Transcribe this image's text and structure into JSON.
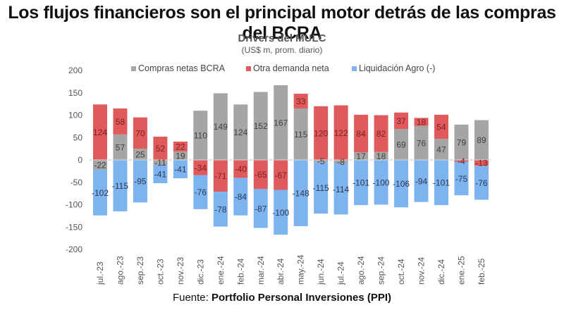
{
  "headline": "Los flujos financieros son el principal motor detrás de las compras del BCRA",
  "source": {
    "prefix": "Fuente: ",
    "name": "Portfolio Personal Inversiones (PPI)"
  },
  "chart_data": {
    "type": "bar",
    "stacked": true,
    "title": "Drivers del MULC",
    "subtitle": "(US$ m, prom. diario)",
    "xlabel": "",
    "ylabel": "",
    "ylim": [
      -200,
      200
    ],
    "yticks": [
      200,
      150,
      100,
      50,
      0,
      -50,
      -100,
      -150,
      -200
    ],
    "grid": false,
    "legend_position": "top-center",
    "categories": [
      "jul.-23",
      "ago.-23",
      "sep.-23",
      "oct.-23",
      "nov.-23",
      "dic.-23",
      "ene.-24",
      "feb.-24",
      "mar.-24",
      "abr.-24",
      "may.-24",
      "jun.-24",
      "jul.-24",
      "ago.-24",
      "sep.-24",
      "oct.-24",
      "nov.-24",
      "dic.-24",
      "ene.-25",
      "feb.-25"
    ],
    "series": [
      {
        "name": "Compras netas BCRA",
        "color": "#A5A5A5",
        "label_color": "#404040",
        "values": [
          -22,
          57,
          25,
          -11,
          19,
          110,
          149,
          124,
          152,
          167,
          115,
          -5,
          -8,
          17,
          18,
          69,
          76,
          47,
          79,
          89
        ]
      },
      {
        "name": "Otra demanda neta",
        "color": "#E05A5C",
        "label_color": "#7A1F22",
        "values": [
          124,
          58,
          70,
          52,
          22,
          -34,
          -71,
          -40,
          -65,
          -67,
          33,
          120,
          122,
          84,
          82,
          37,
          18,
          54,
          -4,
          -13
        ]
      },
      {
        "name": "Liquidación Agro (-)",
        "color": "#7DB3EE",
        "label_color": "#2B3A55",
        "values": [
          -102,
          -115,
          -95,
          -41,
          -41,
          -76,
          -78,
          -84,
          -87,
          -100,
          -148,
          -115,
          -114,
          -101,
          -100,
          -106,
          -94,
          -101,
          -75,
          -76
        ]
      }
    ]
  }
}
